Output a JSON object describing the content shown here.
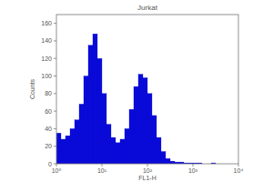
{
  "chart_data": {
    "type": "histogram",
    "title": "Jurkat",
    "x_label": "FL1-H",
    "y_label": "Counts",
    "bins": [
      1,
      1.259,
      1.585,
      1.995,
      2.512,
      3.162,
      3.981,
      5.012,
      6.31,
      7.943,
      10,
      12.59,
      15.85,
      19.95,
      25.12,
      31.62,
      39.81,
      50.12,
      63.1,
      79.43,
      100,
      125.9,
      158.5,
      199.5,
      251.2,
      316.2,
      398.1,
      501.2,
      631,
      794.3,
      1000,
      1259,
      1585,
      1995,
      2512,
      3162,
      3981,
      5012,
      6310,
      7943,
      10000
    ],
    "values": [
      35,
      28,
      32,
      40,
      50,
      68,
      100,
      135,
      148,
      120,
      80,
      45,
      30,
      24,
      28,
      40,
      62,
      88,
      102,
      98,
      80,
      55,
      30,
      14,
      6,
      3,
      2,
      2,
      1,
      1,
      1,
      1,
      0,
      0,
      1,
      0,
      0,
      0,
      0,
      0
    ],
    "color": "#0a0ad8",
    "log": "x",
    "xlim": [
      1,
      10000
    ],
    "xticks": [
      {
        "value": 1,
        "label": "10⁰"
      },
      {
        "value": 10,
        "label": "10¹"
      },
      {
        "value": 100,
        "label": "10²"
      },
      {
        "value": 1000,
        "label": "10³"
      },
      {
        "value": 10000,
        "label": "10⁴"
      }
    ],
    "ylim": [
      0,
      170
    ],
    "yticks": [
      0,
      20,
      40,
      60,
      80,
      100,
      120,
      140,
      160
    ],
    "grid": false
  }
}
